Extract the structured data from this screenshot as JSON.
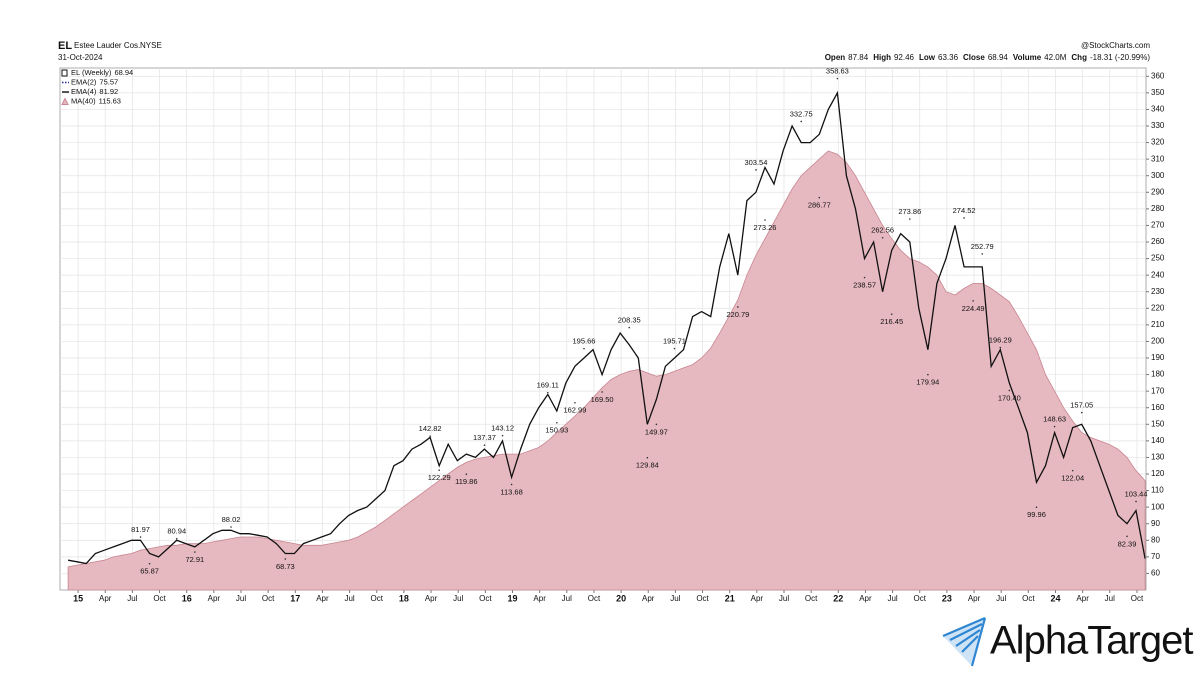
{
  "header": {
    "symbol": "EL",
    "name": "Estee Lauder Cos.",
    "exchange": "NYSE",
    "date": "31-Oct-2024",
    "source": "@StockCharts.com",
    "quote": [
      {
        "label": "Open",
        "value": "87.84"
      },
      {
        "label": "High",
        "value": "92.46"
      },
      {
        "label": "Low",
        "value": "63.36"
      },
      {
        "label": "Close",
        "value": "68.94"
      },
      {
        "label": "Volume",
        "value": "42.0M"
      },
      {
        "label": "Chg",
        "value": "-18.31 (-20.99%)"
      }
    ]
  },
  "branding": {
    "text": "AlphaTarget"
  },
  "chart_data": {
    "type": "line",
    "x": [
      "2014-11",
      "2014-12",
      "2015-01",
      "2015-02",
      "2015-03",
      "2015-04",
      "2015-05",
      "2015-06",
      "2015-07",
      "2015-08",
      "2015-09",
      "2015-10",
      "2015-11",
      "2015-12",
      "2016-01",
      "2016-02",
      "2016-03",
      "2016-04",
      "2016-05",
      "2016-06",
      "2016-07",
      "2016-08",
      "2016-09",
      "2016-10",
      "2016-11",
      "2016-12",
      "2017-01",
      "2017-02",
      "2017-03",
      "2017-04",
      "2017-05",
      "2017-06",
      "2017-07",
      "2017-08",
      "2017-09",
      "2017-10",
      "2017-11",
      "2017-12",
      "2018-01",
      "2018-02",
      "2018-03",
      "2018-04",
      "2018-05",
      "2018-06",
      "2018-07",
      "2018-08",
      "2018-09",
      "2018-10",
      "2018-11",
      "2018-12",
      "2019-01",
      "2019-02",
      "2019-03",
      "2019-04",
      "2019-05",
      "2019-06",
      "2019-07",
      "2019-08",
      "2019-09",
      "2019-10",
      "2019-11",
      "2019-12",
      "2020-01",
      "2020-02",
      "2020-03",
      "2020-04",
      "2020-05",
      "2020-06",
      "2020-07",
      "2020-08",
      "2020-09",
      "2020-10",
      "2020-11",
      "2020-12",
      "2021-01",
      "2021-02",
      "2021-03",
      "2021-04",
      "2021-05",
      "2021-06",
      "2021-07",
      "2021-08",
      "2021-09",
      "2021-10",
      "2021-11",
      "2021-12",
      "2022-01",
      "2022-02",
      "2022-03",
      "2022-04",
      "2022-05",
      "2022-06",
      "2022-07",
      "2022-08",
      "2022-09",
      "2022-10",
      "2022-11",
      "2022-12",
      "2023-01",
      "2023-02",
      "2023-03",
      "2023-04",
      "2023-05",
      "2023-06",
      "2023-07",
      "2023-08",
      "2023-09",
      "2023-10",
      "2023-11",
      "2023-12",
      "2024-01",
      "2024-02",
      "2024-03",
      "2024-04",
      "2024-05",
      "2024-06",
      "2024-07",
      "2024-08",
      "2024-09",
      "2024-10"
    ],
    "series": [
      {
        "name": "MA(40)",
        "last": 115.63,
        "color": "#e6b9c0",
        "stroke": "#c98591",
        "style": "area",
        "values": [
          64,
          65,
          66,
          67,
          68,
          70,
          71,
          72,
          74,
          75,
          76,
          77,
          77,
          78,
          78,
          78,
          79,
          80,
          81,
          82,
          82,
          82,
          81,
          80,
          79,
          78,
          77,
          77,
          77,
          78,
          79,
          80,
          82,
          85,
          88,
          92,
          96,
          100,
          104,
          108,
          112,
          116,
          120,
          124,
          127,
          129,
          130,
          131,
          132,
          132,
          132,
          134,
          136,
          140,
          145,
          150,
          155,
          160,
          166,
          172,
          177,
          180,
          182,
          183,
          181,
          179,
          180,
          182,
          184,
          186,
          190,
          196,
          205,
          215,
          225,
          240,
          252,
          262,
          272,
          282,
          292,
          300,
          305,
          310,
          315,
          313,
          308,
          300,
          290,
          280,
          270,
          262,
          255,
          250,
          248,
          245,
          240,
          230,
          228,
          232,
          235,
          235,
          232,
          228,
          224,
          215,
          205,
          195,
          180,
          170,
          160,
          152,
          145,
          142,
          140,
          138,
          135,
          130,
          122,
          116
        ]
      },
      {
        "name": "EL (Weekly)",
        "last": 68.94,
        "color": "#111111",
        "style": "line",
        "values": [
          68,
          67,
          66,
          72,
          74,
          76,
          78,
          80,
          80,
          72,
          70,
          75,
          80,
          78,
          76,
          80,
          84,
          86,
          86,
          84,
          84,
          83,
          82,
          78,
          72,
          72,
          78,
          80,
          82,
          84,
          90,
          95,
          98,
          100,
          105,
          110,
          125,
          128,
          135,
          138,
          142,
          125,
          138,
          128,
          132,
          130,
          135,
          130,
          140,
          118,
          135,
          150,
          160,
          168,
          158,
          175,
          185,
          190,
          195,
          180,
          195,
          205,
          198,
          190,
          150,
          165,
          185,
          190,
          195,
          215,
          218,
          215,
          245,
          265,
          240,
          285,
          290,
          305,
          295,
          315,
          330,
          320,
          320,
          325,
          340,
          350,
          300,
          280,
          250,
          260,
          230,
          255,
          265,
          260,
          220,
          195,
          235,
          250,
          270,
          245,
          245,
          245,
          185,
          195,
          175,
          160,
          145,
          115,
          125,
          145,
          130,
          148,
          150,
          140,
          125,
          110,
          95,
          90,
          98,
          68.94
        ]
      }
    ],
    "indicators": [
      {
        "name": "EMA(2)",
        "value": 75.57,
        "color": "#1f2f8f"
      },
      {
        "name": "EMA(4)",
        "value": 81.92,
        "color": "#111111"
      }
    ],
    "annotations": {
      "highs": [
        {
          "x": "2015-07",
          "value": 81.97,
          "label": "81.97"
        },
        {
          "x": "2015-11",
          "value": 80.94,
          "label": "80.94"
        },
        {
          "x": "2016-05",
          "value": 88.02,
          "label": "88.02"
        },
        {
          "x": "2018-03",
          "value": 142.82,
          "label": "142.82"
        },
        {
          "x": "2018-09",
          "value": 137.37,
          "label": "137.37"
        },
        {
          "x": "2018-11",
          "value": 143.12,
          "label": "143.12"
        },
        {
          "x": "2019-04",
          "value": 169.11,
          "label": "169.11"
        },
        {
          "x": "2019-08",
          "value": 195.66,
          "label": "195.66"
        },
        {
          "x": "2020-01",
          "value": 208.35,
          "label": "208.35"
        },
        {
          "x": "2020-06",
          "value": 195.71,
          "label": "195.71"
        },
        {
          "x": "2021-03",
          "value": 303.54,
          "label": "303.54"
        },
        {
          "x": "2021-08",
          "value": 332.75,
          "label": "332.75"
        },
        {
          "x": "2021-12",
          "value": 358.63,
          "label": "358.63"
        },
        {
          "x": "2022-05",
          "value": 262.56,
          "label": "262.56"
        },
        {
          "x": "2022-08",
          "value": 273.86,
          "label": "273.86"
        },
        {
          "x": "2023-02",
          "value": 274.52,
          "label": "274.52"
        },
        {
          "x": "2023-04",
          "value": 252.79,
          "label": "252.79"
        },
        {
          "x": "2023-06",
          "value": 196.29,
          "label": "196.29"
        },
        {
          "x": "2023-12",
          "value": 148.63,
          "label": "148.63"
        },
        {
          "x": "2024-03",
          "value": 157.05,
          "label": "157.05"
        },
        {
          "x": "2024-09",
          "value": 103.44,
          "label": "103.44"
        }
      ],
      "lows": [
        {
          "x": "2015-08",
          "value": 65.87,
          "label": "65.87"
        },
        {
          "x": "2016-01",
          "value": 72.91,
          "label": "72.91"
        },
        {
          "x": "2016-11",
          "value": 68.73,
          "label": "68.73"
        },
        {
          "x": "2018-04",
          "value": 122.29,
          "label": "122.29"
        },
        {
          "x": "2018-07",
          "value": 119.86,
          "label": "119.86"
        },
        {
          "x": "2018-12",
          "value": 113.68,
          "label": "113.68"
        },
        {
          "x": "2019-05",
          "value": 150.93,
          "label": "150.93"
        },
        {
          "x": "2019-07",
          "value": 162.99,
          "label": "162.99"
        },
        {
          "x": "2019-10",
          "value": 169.5,
          "label": "169.50"
        },
        {
          "x": "2020-03",
          "value": 129.84,
          "label": "129.84"
        },
        {
          "x": "2020-04",
          "value": 149.97,
          "label": "149.97"
        },
        {
          "x": "2021-01",
          "value": 220.79,
          "label": "220.79"
        },
        {
          "x": "2021-04",
          "value": 273.26,
          "label": "273.26"
        },
        {
          "x": "2021-10",
          "value": 286.77,
          "label": "286.77"
        },
        {
          "x": "2022-03",
          "value": 238.57,
          "label": "238.57"
        },
        {
          "x": "2022-06",
          "value": 216.45,
          "label": "216.45"
        },
        {
          "x": "2022-10",
          "value": 179.94,
          "label": "179.94"
        },
        {
          "x": "2023-03",
          "value": 224.49,
          "label": "224.49"
        },
        {
          "x": "2023-07",
          "value": 170.4,
          "label": "170.40"
        },
        {
          "x": "2023-10",
          "value": 99.96,
          "label": "99.96"
        },
        {
          "x": "2024-02",
          "value": 122.04,
          "label": "122.04"
        },
        {
          "x": "2024-08",
          "value": 82.39,
          "label": "82.39"
        }
      ]
    },
    "xlim": [
      "2014-11",
      "2024-11"
    ],
    "xticks": [
      {
        "value": "2015-01",
        "label": "15"
      },
      {
        "value": "2015-04",
        "label": "Apr"
      },
      {
        "value": "2015-07",
        "label": "Jul"
      },
      {
        "value": "2015-10",
        "label": "Oct"
      },
      {
        "value": "2016-01",
        "label": "16"
      },
      {
        "value": "2016-04",
        "label": "Apr"
      },
      {
        "value": "2016-07",
        "label": "Jul"
      },
      {
        "value": "2016-10",
        "label": "Oct"
      },
      {
        "value": "2017-01",
        "label": "17"
      },
      {
        "value": "2017-04",
        "label": "Apr"
      },
      {
        "value": "2017-07",
        "label": "Jul"
      },
      {
        "value": "2017-10",
        "label": "Oct"
      },
      {
        "value": "2018-01",
        "label": "18"
      },
      {
        "value": "2018-04",
        "label": "Apr"
      },
      {
        "value": "2018-07",
        "label": "Jul"
      },
      {
        "value": "2018-10",
        "label": "Oct"
      },
      {
        "value": "2019-01",
        "label": "19"
      },
      {
        "value": "2019-04",
        "label": "Apr"
      },
      {
        "value": "2019-07",
        "label": "Jul"
      },
      {
        "value": "2019-10",
        "label": "Oct"
      },
      {
        "value": "2020-01",
        "label": "20"
      },
      {
        "value": "2020-04",
        "label": "Apr"
      },
      {
        "value": "2020-07",
        "label": "Jul"
      },
      {
        "value": "2020-10",
        "label": "Oct"
      },
      {
        "value": "2021-01",
        "label": "21"
      },
      {
        "value": "2021-04",
        "label": "Apr"
      },
      {
        "value": "2021-07",
        "label": "Jul"
      },
      {
        "value": "2021-10",
        "label": "Oct"
      },
      {
        "value": "2022-01",
        "label": "22"
      },
      {
        "value": "2022-04",
        "label": "Apr"
      },
      {
        "value": "2022-07",
        "label": "Jul"
      },
      {
        "value": "2022-10",
        "label": "Oct"
      },
      {
        "value": "2023-01",
        "label": "23"
      },
      {
        "value": "2023-04",
        "label": "Apr"
      },
      {
        "value": "2023-07",
        "label": "Jul"
      },
      {
        "value": "2023-10",
        "label": "Oct"
      },
      {
        "value": "2024-01",
        "label": "24"
      },
      {
        "value": "2024-04",
        "label": "Apr"
      },
      {
        "value": "2024-07",
        "label": "Jul"
      },
      {
        "value": "2024-10",
        "label": "Oct"
      }
    ],
    "ylim": [
      50,
      365
    ],
    "yticks": [
      60,
      70,
      80,
      90,
      100,
      110,
      120,
      130,
      140,
      150,
      160,
      170,
      180,
      190,
      200,
      210,
      220,
      230,
      240,
      250,
      260,
      270,
      280,
      290,
      300,
      310,
      320,
      330,
      340,
      350,
      360
    ],
    "grid": true
  }
}
